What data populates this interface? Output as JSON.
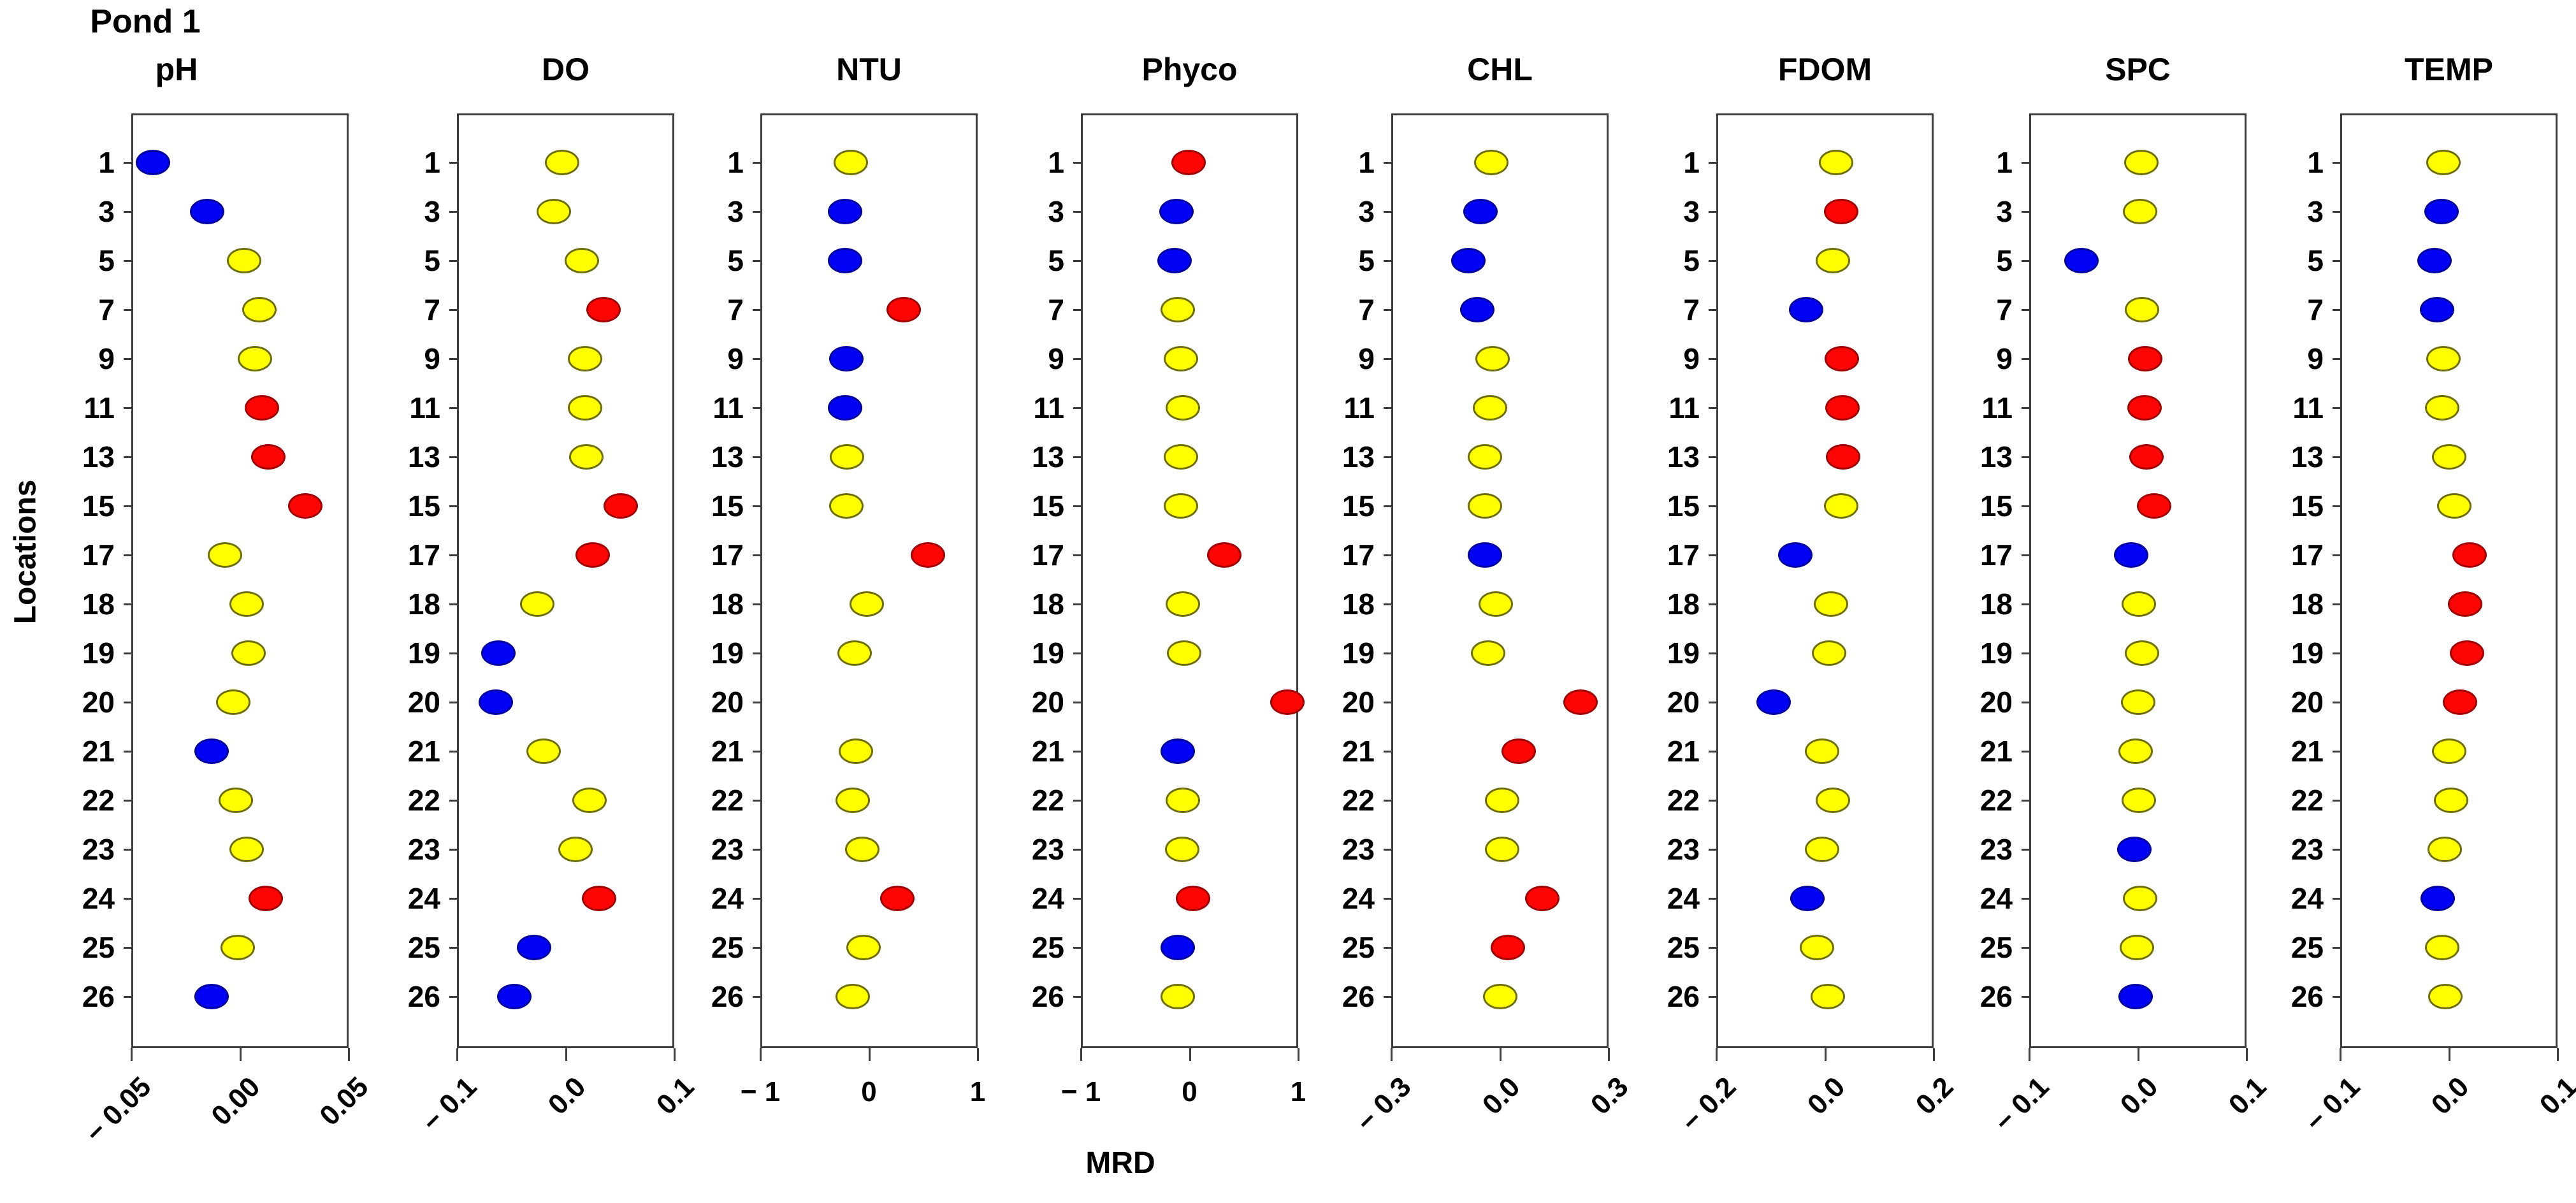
{
  "chart_data": {
    "type": "scatter",
    "title": "Pond 1",
    "xlabel": "MRD",
    "ylabel": "Locations",
    "categories": [
      1,
      3,
      5,
      7,
      9,
      11,
      13,
      15,
      17,
      18,
      19,
      20,
      21,
      22,
      23,
      24,
      25,
      26
    ],
    "legend_position": "none",
    "grid": false,
    "palette": {
      "blue": "#0202f5",
      "yellow": "#ffff00",
      "red": "#fb0505"
    },
    "outline": {
      "blue": "#0000a0",
      "yellow": "#6e6e08",
      "red": "#a00000"
    },
    "panels": [
      {
        "name": "pH",
        "xlim": [
          -0.05,
          0.05
        ],
        "tick_values": [
          -0.05,
          0,
          0.05
        ],
        "tick_labels": [
          "− 0.05",
          "0.00",
          "0.05"
        ],
        "rotated_tick_labels": true,
        "values": [
          -0.04,
          -0.015,
          0.002,
          0.009,
          0.007,
          0.01,
          0.013,
          0.03,
          -0.007,
          0.003,
          0.004,
          -0.003,
          -0.013,
          -0.002,
          0.003,
          0.012,
          -0.001,
          -0.013
        ],
        "colors": [
          "blue",
          "blue",
          "yellow",
          "yellow",
          "yellow",
          "red",
          "red",
          "red",
          "yellow",
          "yellow",
          "yellow",
          "yellow",
          "blue",
          "yellow",
          "yellow",
          "red",
          "yellow",
          "blue"
        ]
      },
      {
        "name": "DO",
        "xlim": [
          -0.1,
          0.1
        ],
        "tick_values": [
          -0.1,
          0,
          0.1
        ],
        "tick_labels": [
          "− 0.1",
          "0.0",
          "0.1"
        ],
        "rotated_tick_labels": true,
        "values": [
          -0.003,
          -0.011,
          0.015,
          0.035,
          0.018,
          0.018,
          0.019,
          0.051,
          0.025,
          -0.026,
          -0.062,
          -0.064,
          -0.02,
          0.022,
          0.009,
          0.031,
          -0.029,
          -0.047
        ],
        "colors": [
          "yellow",
          "yellow",
          "yellow",
          "red",
          "yellow",
          "yellow",
          "yellow",
          "red",
          "red",
          "yellow",
          "blue",
          "blue",
          "yellow",
          "yellow",
          "yellow",
          "red",
          "blue",
          "blue"
        ]
      },
      {
        "name": "NTU",
        "xlim": [
          -1,
          1
        ],
        "tick_values": [
          -1,
          0,
          1
        ],
        "tick_labels": [
          "− 1",
          "0",
          "1"
        ],
        "rotated_tick_labels": false,
        "values": [
          -0.17,
          -0.22,
          -0.22,
          0.32,
          -0.21,
          -0.22,
          -0.2,
          -0.21,
          0.54,
          -0.02,
          -0.13,
          null,
          -0.12,
          -0.15,
          -0.06,
          0.26,
          -0.05,
          -0.15
        ],
        "colors": [
          "yellow",
          "blue",
          "blue",
          "red",
          "blue",
          "blue",
          "yellow",
          "yellow",
          "red",
          "yellow",
          "yellow",
          null,
          "yellow",
          "yellow",
          "yellow",
          "red",
          "yellow",
          "yellow"
        ]
      },
      {
        "name": "Phyco",
        "xlim": [
          -1,
          1
        ],
        "tick_values": [
          -1,
          0,
          1
        ],
        "tick_labels": [
          "− 1",
          "0",
          "1"
        ],
        "rotated_tick_labels": false,
        "values": [
          -0.01,
          -0.12,
          -0.14,
          -0.11,
          -0.08,
          -0.06,
          -0.08,
          -0.08,
          0.32,
          -0.06,
          -0.05,
          0.9,
          -0.11,
          -0.06,
          -0.07,
          0.03,
          -0.11,
          -0.11
        ],
        "colors": [
          "red",
          "blue",
          "blue",
          "yellow",
          "yellow",
          "yellow",
          "yellow",
          "yellow",
          "red",
          "yellow",
          "yellow",
          "red",
          "blue",
          "yellow",
          "yellow",
          "red",
          "blue",
          "yellow"
        ]
      },
      {
        "name": "CHL",
        "xlim": [
          -0.3,
          0.3
        ],
        "tick_values": [
          -0.3,
          0,
          0.3
        ],
        "tick_labels": [
          "− 0.3",
          "0.0",
          "0.3"
        ],
        "rotated_tick_labels": true,
        "values": [
          -0.023,
          -0.053,
          -0.087,
          -0.062,
          -0.021,
          -0.028,
          -0.041,
          -0.041,
          -0.041,
          -0.012,
          -0.033,
          0.222,
          0.052,
          0.007,
          0.007,
          0.117,
          0.022,
          0.0
        ],
        "colors": [
          "yellow",
          "blue",
          "blue",
          "blue",
          "yellow",
          "yellow",
          "yellow",
          "yellow",
          "blue",
          "yellow",
          "yellow",
          "red",
          "red",
          "yellow",
          "yellow",
          "red",
          "red",
          "yellow"
        ]
      },
      {
        "name": "FDOM",
        "xlim": [
          -0.2,
          0.2
        ],
        "tick_values": [
          -0.2,
          0,
          0.2
        ],
        "tick_labels": [
          "− 0.2",
          "0.0",
          "0.2"
        ],
        "rotated_tick_labels": true,
        "values": [
          0.02,
          0.03,
          0.015,
          -0.035,
          0.031,
          0.032,
          0.033,
          0.03,
          -0.055,
          0.011,
          0.008,
          -0.094,
          -0.005,
          0.015,
          -0.005,
          -0.032,
          -0.015,
          0.005
        ],
        "colors": [
          "yellow",
          "red",
          "yellow",
          "blue",
          "red",
          "red",
          "red",
          "yellow",
          "blue",
          "yellow",
          "yellow",
          "blue",
          "yellow",
          "yellow",
          "yellow",
          "blue",
          "yellow",
          "yellow"
        ]
      },
      {
        "name": "SPC",
        "xlim": [
          -0.1,
          0.1
        ],
        "tick_values": [
          -0.1,
          0,
          0.1
        ],
        "tick_labels": [
          "− 0.1",
          "0.0",
          "0.1"
        ],
        "rotated_tick_labels": true,
        "values": [
          0.003,
          0.002,
          -0.052,
          0.004,
          0.007,
          0.006,
          0.008,
          0.015,
          -0.006,
          0.001,
          0.004,
          0.0,
          -0.002,
          0.001,
          -0.003,
          0.002,
          -0.001,
          -0.002
        ],
        "colors": [
          "yellow",
          "yellow",
          "blue",
          "yellow",
          "red",
          "red",
          "red",
          "red",
          "blue",
          "yellow",
          "yellow",
          "yellow",
          "yellow",
          "yellow",
          "blue",
          "yellow",
          "yellow",
          "blue"
        ]
      },
      {
        "name": "TEMP",
        "xlim": [
          -0.1,
          0.1
        ],
        "tick_values": [
          -0.1,
          0,
          0.1
        ],
        "tick_labels": [
          "− 0.1",
          "0.0",
          "0.1"
        ],
        "rotated_tick_labels": true,
        "values": [
          -0.005,
          -0.007,
          -0.013,
          -0.011,
          -0.005,
          -0.006,
          0.0,
          0.005,
          0.019,
          0.015,
          0.017,
          0.01,
          0.0,
          0.002,
          -0.004,
          -0.01,
          -0.006,
          -0.003
        ],
        "colors": [
          "yellow",
          "blue",
          "blue",
          "blue",
          "yellow",
          "yellow",
          "yellow",
          "yellow",
          "red",
          "red",
          "red",
          "red",
          "yellow",
          "yellow",
          "yellow",
          "blue",
          "yellow",
          "yellow"
        ]
      }
    ]
  }
}
